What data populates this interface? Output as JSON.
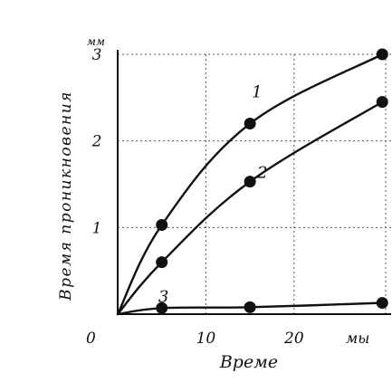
{
  "chart_data": {
    "type": "line",
    "ylabel": "Время проникновения",
    "xlabel": "Време",
    "y_unit": "мм",
    "x_unit": "мы",
    "origin_label": "0",
    "xlim": [
      0,
      31
    ],
    "ylim": [
      0,
      3.0
    ],
    "x_ticks": [
      {
        "value": 10,
        "label": "10"
      },
      {
        "value": 20,
        "label": "20"
      }
    ],
    "y_ticks": [
      {
        "value": 1,
        "label": "1"
      },
      {
        "value": 2,
        "label": "2"
      },
      {
        "value": 3,
        "label": "3"
      }
    ],
    "grid": true,
    "series": [
      {
        "label": "1",
        "points": [
          {
            "x": 0,
            "y": 0
          },
          {
            "x": 5,
            "y": 1.03
          },
          {
            "x": 15,
            "y": 2.2
          },
          {
            "x": 30,
            "y": 3.0
          }
        ]
      },
      {
        "label": "2",
        "points": [
          {
            "x": 0,
            "y": 0
          },
          {
            "x": 5,
            "y": 0.6
          },
          {
            "x": 15,
            "y": 1.53
          },
          {
            "x": 30,
            "y": 2.45
          }
        ]
      },
      {
        "label": "3",
        "points": [
          {
            "x": 0,
            "y": 0
          },
          {
            "x": 5,
            "y": 0.07
          },
          {
            "x": 15,
            "y": 0.08
          },
          {
            "x": 30,
            "y": 0.13
          }
        ]
      }
    ]
  }
}
